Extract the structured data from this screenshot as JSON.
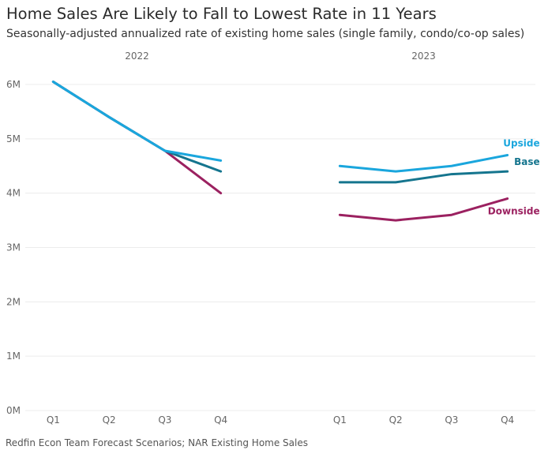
{
  "title": "Home Sales Are Likely to Fall to Lowest Rate in 11 Years",
  "subtitle": "Seasonally-adjusted annualized rate of existing home sales (single family, condo/co-op sales)",
  "source": "Redfin Econ Team Forecast Scenarios; NAR Existing Home Sales",
  "chart_data": {
    "type": "line",
    "panels": [
      {
        "label": "2022",
        "categories": [
          "Q1",
          "Q2",
          "Q3",
          "Q4"
        ]
      },
      {
        "label": "2023",
        "categories": [
          "Q1",
          "Q2",
          "Q3",
          "Q4"
        ]
      }
    ],
    "y_ticks": [
      "6M",
      "5M",
      "4M",
      "3M",
      "2M",
      "1M",
      "0M"
    ],
    "ylim": [
      0,
      6000000
    ],
    "grid": true,
    "series": [
      {
        "name": "Upside",
        "color": "#1aa6dd",
        "values_2022": [
          6050000,
          5400000,
          4780000,
          4600000
        ],
        "values_2023": [
          4500000,
          4400000,
          4500000,
          4700000
        ]
      },
      {
        "name": "Base",
        "color": "#15758e",
        "values_2022": [
          6050000,
          5400000,
          4780000,
          4400000
        ],
        "values_2023": [
          4200000,
          4200000,
          4350000,
          4400000
        ]
      },
      {
        "name": "Downside",
        "color": "#9b2160",
        "values_2022": [
          6050000,
          5400000,
          4780000,
          4000000
        ],
        "values_2023": [
          3600000,
          3500000,
          3600000,
          3900000
        ]
      }
    ]
  }
}
